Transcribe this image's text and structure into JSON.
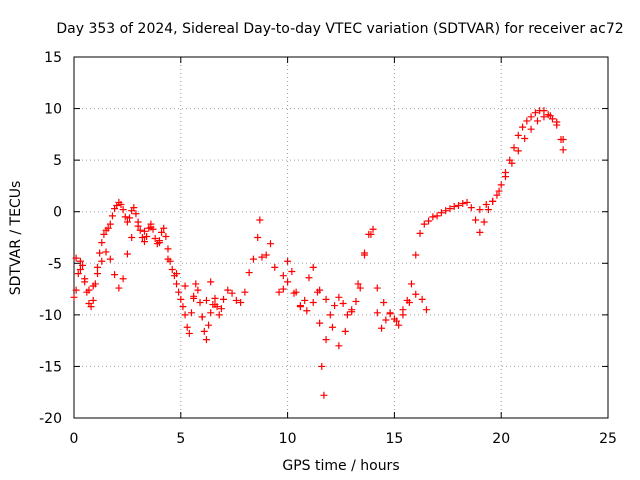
{
  "chart_data": {
    "type": "scatter",
    "title": "Day 353 of 2024, Sidereal Day-to-day VTEC variation (SDTVAR) for receiver ac72",
    "xlabel": "GPS time / hours",
    "ylabel": "SDTVAR / TECUs",
    "xlim": [
      0,
      25
    ],
    "ylim": [
      -20,
      15
    ],
    "xticks": [
      0,
      5,
      10,
      15,
      20,
      25
    ],
    "yticks": [
      -20,
      -15,
      -10,
      -5,
      0,
      5,
      10,
      15
    ],
    "xtick_labels": [
      "0",
      "5",
      "10",
      "15",
      "20",
      "25"
    ],
    "ytick_labels": [
      "-20",
      "-15",
      "-10",
      "-5",
      "0",
      "5",
      "10",
      "15"
    ],
    "grid": true,
    "marker": "+",
    "series": [
      {
        "name": "SDTVAR",
        "color": "#ff0000",
        "x": [
          0.0,
          0.1,
          0.2,
          0.3,
          0.4,
          0.5,
          0.6,
          0.7,
          0.8,
          0.9,
          1.0,
          1.1,
          1.2,
          1.3,
          1.4,
          1.5,
          1.6,
          1.7,
          1.8,
          1.9,
          2.0,
          2.1,
          2.2,
          2.3,
          2.4,
          2.5,
          2.6,
          2.7,
          2.8,
          2.9,
          3.0,
          3.1,
          3.2,
          3.3,
          3.4,
          3.5,
          3.6,
          3.7,
          3.8,
          3.9,
          4.0,
          4.1,
          4.2,
          4.3,
          4.4,
          4.5,
          4.6,
          4.7,
          4.8,
          4.9,
          5.0,
          5.1,
          5.2,
          5.3,
          5.4,
          5.5,
          5.6,
          5.7,
          5.8,
          5.9,
          6.0,
          6.1,
          6.2,
          6.3,
          6.4,
          6.5,
          6.6,
          6.7,
          6.8,
          6.9,
          7.0,
          7.2,
          7.4,
          7.6,
          7.8,
          8.0,
          8.2,
          8.4,
          8.6,
          8.7,
          8.8,
          9.0,
          9.2,
          9.4,
          9.6,
          9.8,
          10.0,
          10.2,
          10.4,
          10.6,
          10.8,
          11.0,
          11.2,
          11.4,
          11.5,
          11.6,
          11.7,
          11.8,
          12.0,
          12.2,
          12.4,
          12.6,
          12.8,
          13.0,
          13.2,
          13.4,
          13.6,
          13.8,
          14.0,
          14.2,
          14.4,
          14.6,
          14.8,
          15.0,
          15.2,
          15.4,
          15.6,
          15.8,
          16.0,
          16.2,
          16.4,
          16.6,
          16.8,
          17.0,
          17.2,
          17.4,
          17.6,
          17.8,
          18.0,
          18.2,
          18.4,
          18.6,
          18.8,
          19.0,
          19.2,
          19.4,
          19.6,
          19.8,
          20.0,
          20.2,
          20.4,
          20.6,
          20.8,
          21.0,
          21.2,
          21.4,
          21.6,
          21.8,
          22.0,
          22.2,
          22.4,
          22.6,
          22.8,
          22.9,
          0.1,
          0.3,
          0.5,
          0.7,
          0.9,
          1.1,
          1.3,
          1.5,
          1.7,
          1.9,
          2.1,
          2.3,
          2.5,
          2.7,
          3.0,
          3.3,
          3.6,
          4.0,
          4.4,
          4.8,
          5.2,
          5.6,
          6.0,
          6.2,
          6.4,
          6.6,
          9.8,
          10.0,
          10.3,
          10.6,
          10.9,
          11.2,
          11.5,
          11.8,
          12.1,
          12.4,
          12.7,
          13.0,
          13.3,
          13.6,
          13.9,
          14.2,
          14.5,
          14.8,
          15.1,
          15.4,
          15.7,
          16.0,
          16.3,
          16.5,
          19.0,
          19.3,
          19.6,
          19.9,
          20.2,
          20.5,
          20.8,
          21.1,
          21.4,
          21.7,
          22.0,
          22.3,
          22.6,
          22.9
        ],
        "y": [
          -8.3,
          -7.6,
          -6.0,
          -4.8,
          -5.2,
          -6.5,
          -7.8,
          -8.9,
          -9.2,
          -8.6,
          -7.0,
          -5.4,
          -4.0,
          -3.0,
          -2.2,
          -1.8,
          -1.6,
          -1.2,
          -0.4,
          0.3,
          0.6,
          0.9,
          0.7,
          0.2,
          -0.5,
          -1.0,
          -0.6,
          0.1,
          0.4,
          -0.2,
          -1.0,
          -1.8,
          -2.5,
          -2.9,
          -2.4,
          -1.6,
          -1.2,
          -1.7,
          -2.6,
          -3.1,
          -2.8,
          -2.0,
          -1.6,
          -2.4,
          -3.6,
          -4.8,
          -5.6,
          -6.2,
          -7.0,
          -7.8,
          -8.5,
          -9.2,
          -10.0,
          -11.2,
          -11.8,
          -9.8,
          -8.2,
          -7.0,
          -7.6,
          -8.8,
          -10.2,
          -11.6,
          -12.4,
          -11.0,
          -9.8,
          -9.0,
          -8.4,
          -9.2,
          -10.0,
          -9.4,
          -8.5,
          -7.6,
          -7.9,
          -8.6,
          -8.8,
          -7.8,
          -5.9,
          -4.6,
          -2.5,
          -0.8,
          -4.4,
          -4.2,
          -3.1,
          -5.4,
          -7.8,
          -6.2,
          -4.8,
          -5.8,
          -7.8,
          -9.2,
          -8.6,
          -6.4,
          -5.4,
          -7.8,
          -10.8,
          -15.0,
          -17.8,
          -12.4,
          -10.0,
          -9.1,
          -8.3,
          -8.9,
          -10.0,
          -9.5,
          -8.7,
          -7.4,
          -4.2,
          -2.2,
          -1.7,
          -9.8,
          -11.3,
          -10.5,
          -9.8,
          -10.4,
          -11.0,
          -9.5,
          -8.6,
          -7.0,
          -4.2,
          -2.1,
          -1.2,
          -0.9,
          -0.5,
          -0.4,
          -0.1,
          0.1,
          0.3,
          0.5,
          0.6,
          0.8,
          0.9,
          0.4,
          -0.8,
          -2.0,
          -1.0,
          0.2,
          1.0,
          1.6,
          2.6,
          3.8,
          5.0,
          6.2,
          7.4,
          8.2,
          8.8,
          9.2,
          9.6,
          9.8,
          9.8,
          9.4,
          9.0,
          8.4,
          7.0,
          6.0,
          -4.5,
          -5.6,
          -6.8,
          -7.6,
          -7.2,
          -6.0,
          -4.8,
          -3.9,
          -4.6,
          -6.1,
          -7.4,
          -6.5,
          -4.1,
          -2.5,
          -1.4,
          -1.9,
          -1.5,
          -3.0,
          -4.6,
          -6.0,
          -7.2,
          -8.4,
          -10.2,
          -8.6,
          -6.8,
          -9.0,
          -7.5,
          -6.8,
          -7.9,
          -9.1,
          -9.6,
          -8.8,
          -7.6,
          -8.5,
          -11.2,
          -13.0,
          -11.6,
          -9.7,
          -7.0,
          -4.0,
          -2.2,
          -7.4,
          -8.8,
          -9.9,
          -10.6,
          -10.0,
          -8.8,
          -8.0,
          -8.5,
          -9.5,
          0.2,
          0.7,
          1.0,
          2.0,
          3.4,
          4.7,
          5.9,
          7.1,
          8.0,
          8.8,
          9.2,
          9.3,
          8.7,
          7.0
        ]
      }
    ]
  }
}
